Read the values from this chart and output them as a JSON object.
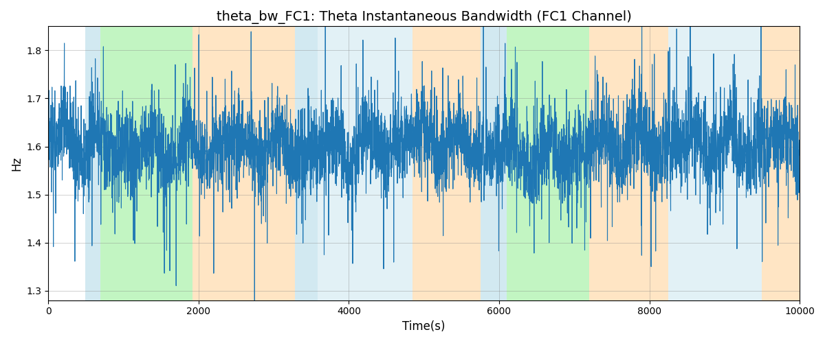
{
  "title": "theta_bw_FC1: Theta Instantaneous Bandwidth (FC1 Channel)",
  "xlabel": "Time(s)",
  "ylabel": "Hz",
  "xlim": [
    0,
    10000
  ],
  "ylim": [
    1.28,
    1.85
  ],
  "yticks": [
    1.3,
    1.4,
    1.5,
    1.6,
    1.7,
    1.8
  ],
  "xticks": [
    0,
    2000,
    4000,
    6000,
    8000,
    10000
  ],
  "line_color": "#1f77b4",
  "line_width": 0.8,
  "background_color": "#ffffff",
  "shaded_regions": [
    {
      "xmin": 490,
      "xmax": 690,
      "color": "#add8e6",
      "alpha": 0.55
    },
    {
      "xmin": 690,
      "xmax": 1920,
      "color": "#90ee90",
      "alpha": 0.55
    },
    {
      "xmin": 1920,
      "xmax": 3280,
      "color": "#ffd59e",
      "alpha": 0.6
    },
    {
      "xmin": 3280,
      "xmax": 3580,
      "color": "#add8e6",
      "alpha": 0.55
    },
    {
      "xmin": 3580,
      "xmax": 4850,
      "color": "#add8e6",
      "alpha": 0.35
    },
    {
      "xmin": 4850,
      "xmax": 5750,
      "color": "#ffd59e",
      "alpha": 0.6
    },
    {
      "xmin": 5750,
      "xmax": 6100,
      "color": "#add8e6",
      "alpha": 0.55
    },
    {
      "xmin": 6100,
      "xmax": 7200,
      "color": "#90ee90",
      "alpha": 0.55
    },
    {
      "xmin": 7200,
      "xmax": 8250,
      "color": "#ffd59e",
      "alpha": 0.6
    },
    {
      "xmin": 8250,
      "xmax": 9500,
      "color": "#add8e6",
      "alpha": 0.35
    },
    {
      "xmin": 9500,
      "xmax": 10000,
      "color": "#ffd59e",
      "alpha": 0.6
    }
  ],
  "title_fontsize": 14,
  "grid_color": "gray",
  "grid_alpha": 0.5,
  "grid_linewidth": 0.5
}
